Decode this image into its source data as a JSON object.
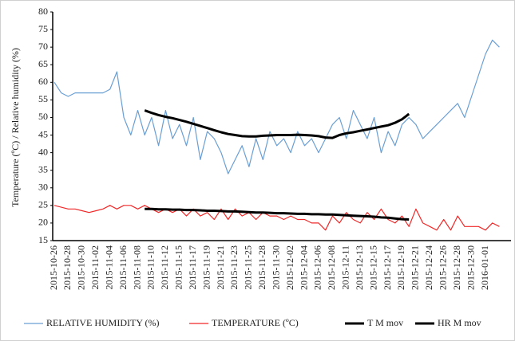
{
  "chart_data": {
    "type": "line",
    "y_label": "Temperature (ºC) / Relative humidity (%)",
    "categories": [
      "2015-10-26",
      null,
      "2015-10-28",
      null,
      "2015-10-30",
      null,
      "2015-11-02",
      null,
      "2015-11-04",
      null,
      "2015-11-06",
      null,
      "2015-11-08",
      null,
      "2015-11-10",
      null,
      "2015-11-12",
      null,
      "2015-11-15",
      null,
      "2015-11-17",
      null,
      "2015-11-19",
      null,
      "2015-11-21",
      null,
      "2015-11-23",
      null,
      "2015-11-25",
      null,
      "2015-11-28",
      null,
      "2015-11-30",
      null,
      "2015-12-02",
      null,
      "2015-12-04",
      null,
      "2015-12-06",
      null,
      "2015-12-08",
      null,
      "2015-12-11",
      null,
      "2015-12-13",
      null,
      "2015-12-15",
      null,
      "2015-12-17",
      null,
      "2015-12-19",
      null,
      "2015-12-21",
      null,
      "2015-12-24",
      null,
      "2015-12-26",
      null,
      "2015-12-28",
      null,
      "2015-12-30",
      null,
      "2016-01-01",
      null,
      null
    ],
    "series": [
      {
        "name": "RELATIVE HUMIDITY (%)",
        "color": "#6a9fd4",
        "width": 1.2,
        "values": [
          60,
          57,
          56,
          57,
          57,
          57,
          57,
          57,
          58,
          63,
          50,
          45,
          52,
          45,
          50,
          42,
          52,
          44,
          48,
          42,
          50,
          38,
          46,
          44,
          40,
          34,
          38,
          42,
          36,
          44,
          38,
          46,
          42,
          44,
          40,
          46,
          42,
          44,
          40,
          44,
          48,
          50,
          44,
          52,
          48,
          44,
          50,
          40,
          46,
          42,
          48,
          50,
          48,
          44,
          46,
          48,
          50,
          52,
          54,
          50,
          56,
          62,
          68,
          72,
          70
        ]
      },
      {
        "name": "TEMPERATURE (ºC)",
        "color": "#f02828",
        "width": 1.2,
        "values": [
          25,
          24.5,
          24,
          24,
          23.5,
          23,
          23.5,
          24,
          25,
          24,
          25,
          25,
          24,
          25,
          24,
          23,
          24,
          23,
          24,
          22,
          24,
          22,
          23,
          21,
          24,
          21,
          24,
          22,
          23,
          21,
          23,
          22,
          22,
          21,
          22,
          21,
          21,
          20,
          20,
          18,
          22,
          20,
          23,
          21,
          20,
          23,
          21,
          24,
          21,
          20,
          22,
          19,
          24,
          20,
          19,
          18,
          21,
          18,
          22,
          19,
          19,
          19,
          18,
          20,
          19
        ]
      },
      {
        "name": "T M mov",
        "color": "#000000",
        "width": 3,
        "values": [
          null,
          null,
          null,
          null,
          null,
          null,
          null,
          null,
          null,
          null,
          null,
          null,
          null,
          24,
          24,
          23.9,
          23.9,
          23.8,
          23.8,
          23.7,
          23.7,
          23.6,
          23.5,
          23.5,
          23.4,
          23.3,
          23.3,
          23.2,
          23.1,
          23,
          23,
          22.9,
          22.8,
          22.8,
          22.7,
          22.6,
          22.6,
          22.5,
          22.5,
          22.4,
          22.4,
          22.3,
          22.2,
          22.1,
          22,
          21.9,
          21.8,
          21.6,
          21.5,
          21.3,
          21.1,
          21,
          null,
          null,
          null,
          null,
          null,
          null,
          null,
          null,
          null,
          null,
          null,
          null,
          null
        ]
      },
      {
        "name": "HR M mov",
        "color": "#000000",
        "width": 3,
        "values": [
          null,
          null,
          null,
          null,
          null,
          null,
          null,
          null,
          null,
          null,
          null,
          null,
          null,
          52,
          51.3,
          50.7,
          50.2,
          49.8,
          49.3,
          48.8,
          48.2,
          47.6,
          47,
          46.4,
          45.8,
          45.3,
          45,
          44.7,
          44.6,
          44.6,
          44.8,
          44.9,
          45,
          45,
          45,
          45.1,
          45,
          44.9,
          44.7,
          44.3,
          44.2,
          45,
          45.5,
          45.8,
          46.2,
          46.6,
          47,
          47.4,
          47.8,
          48.5,
          49.5,
          51,
          null,
          null,
          null,
          null,
          null,
          null,
          null,
          null,
          null,
          null,
          null,
          null,
          null
        ]
      }
    ],
    "ylim": [
      15,
      80
    ],
    "yticks": [
      15,
      20,
      25,
      30,
      35,
      40,
      45,
      50,
      55,
      60,
      65,
      70,
      75,
      80
    ],
    "grid": false,
    "legend": "bottom"
  }
}
